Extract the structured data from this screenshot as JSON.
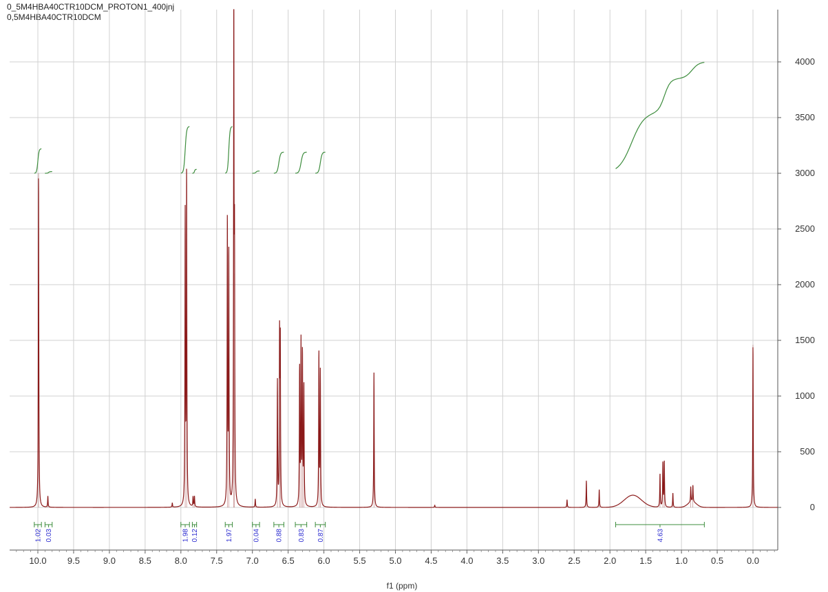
{
  "header": {
    "title_line1": "0_5M4HBA40CTR10DCM_PROTON1_400jnj",
    "title_line2": "0,5M4HBA40CTR10DCM"
  },
  "colors": {
    "spectrum": "#8b1a1a",
    "integral": "#3c8c3c",
    "integral_label": "#2b2bd0",
    "grid": "#d0d0d0"
  },
  "chart_data": {
    "type": "line",
    "xlabel": "f1 (ppm)",
    "ylabel": "",
    "xlim": [
      10.4,
      -0.45
    ],
    "x_reversed": true,
    "ylim": [
      -700,
      4500
    ],
    "grid": true,
    "x_ticks": [
      "10.0",
      "9.5",
      "9.0",
      "8.5",
      "8.0",
      "7.5",
      "7.0",
      "6.5",
      "6.0",
      "5.5",
      "5.0",
      "4.5",
      "4.0",
      "3.5",
      "3.0",
      "2.5",
      "2.0",
      "1.5",
      "1.0",
      "0.5",
      "0.0"
    ],
    "y_ticks": [
      "0",
      "500",
      "1000",
      "1500",
      "2000",
      "2500",
      "3000",
      "3500",
      "4000"
    ],
    "peaks": [
      {
        "ppm": 9.99,
        "height": 3000
      },
      {
        "ppm": 9.86,
        "height": 100
      },
      {
        "ppm": 8.12,
        "height": 40
      },
      {
        "ppm": 7.94,
        "height": 2600
      },
      {
        "ppm": 7.92,
        "height": 2980
      },
      {
        "ppm": 7.83,
        "height": 90
      },
      {
        "ppm": 7.81,
        "height": 95
      },
      {
        "ppm": 7.35,
        "height": 2570
      },
      {
        "ppm": 7.33,
        "height": 2260
      },
      {
        "ppm": 7.26,
        "height": 4450
      },
      {
        "ppm": 7.25,
        "height": 2100
      },
      {
        "ppm": 6.96,
        "height": 75
      },
      {
        "ppm": 6.65,
        "height": 1120
      },
      {
        "ppm": 6.62,
        "height": 1460
      },
      {
        "ppm": 6.61,
        "height": 1440
      },
      {
        "ppm": 6.34,
        "height": 1230
      },
      {
        "ppm": 6.32,
        "height": 1440
      },
      {
        "ppm": 6.3,
        "height": 1350
      },
      {
        "ppm": 6.28,
        "height": 1070
      },
      {
        "ppm": 6.07,
        "height": 1380
      },
      {
        "ppm": 6.05,
        "height": 1200
      },
      {
        "ppm": 5.3,
        "height": 1210
      },
      {
        "ppm": 4.45,
        "height": 20
      },
      {
        "ppm": 2.6,
        "height": 70
      },
      {
        "ppm": 2.33,
        "height": 240
      },
      {
        "ppm": 2.15,
        "height": 160
      },
      {
        "ppm": 1.3,
        "height": 300
      },
      {
        "ppm": 1.26,
        "height": 400
      },
      {
        "ppm": 1.24,
        "height": 410
      },
      {
        "ppm": 1.12,
        "height": 130
      },
      {
        "ppm": 0.87,
        "height": 140
      },
      {
        "ppm": 0.84,
        "height": 150
      },
      {
        "ppm": 0.0,
        "height": 1460
      }
    ],
    "broad_humps": [
      {
        "ppm": 1.68,
        "height": 110,
        "width": 0.12
      },
      {
        "ppm": 0.85,
        "height": 50,
        "width": 0.06
      }
    ],
    "integrals": [
      {
        "from": 10.05,
        "to": 9.95,
        "value": "1.02",
        "start": 3000,
        "rise": 220
      },
      {
        "from": 9.9,
        "to": 9.8,
        "value": "0.03",
        "start": 3000,
        "rise": 15
      },
      {
        "from": 8.0,
        "to": 7.88,
        "value": "1.98",
        "start": 3000,
        "rise": 420
      },
      {
        "from": 7.84,
        "to": 7.78,
        "value": "0.12",
        "start": 3000,
        "rise": 35
      },
      {
        "from": 7.38,
        "to": 7.28,
        "value": "1.97",
        "start": 3000,
        "rise": 420
      },
      {
        "from": 7.0,
        "to": 6.9,
        "value": "0.04",
        "start": 3000,
        "rise": 20
      },
      {
        "from": 6.7,
        "to": 6.56,
        "value": "0.88",
        "start": 3000,
        "rise": 190
      },
      {
        "from": 6.4,
        "to": 6.24,
        "value": "0.83",
        "start": 3000,
        "rise": 190
      },
      {
        "from": 6.12,
        "to": 5.98,
        "value": "0.87",
        "start": 3000,
        "rise": 190
      },
      {
        "from": 1.92,
        "to": 0.68,
        "value": "4.63",
        "start": 3000,
        "rise": 1000
      }
    ]
  }
}
